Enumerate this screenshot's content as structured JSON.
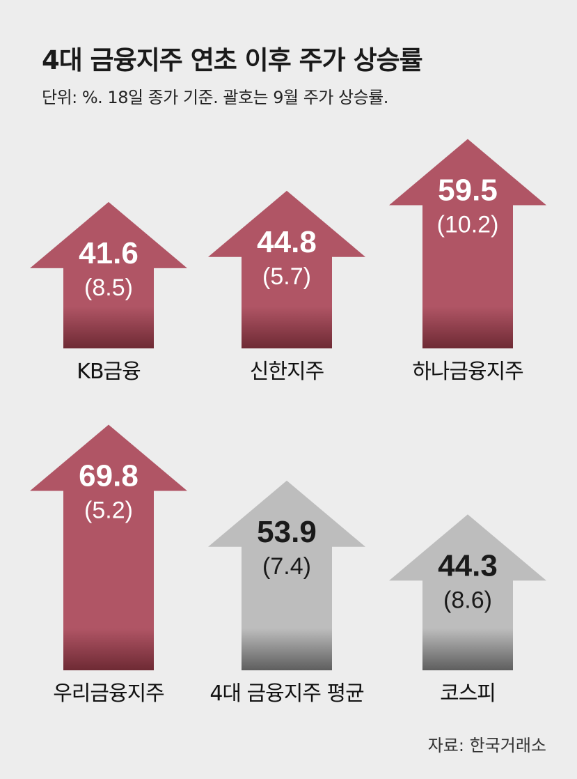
{
  "title": "4대 금융지주 연초 이후 주가 상승률",
  "subtitle": "단위: %. 18일 종가 기준. 괄호는 9월 주가 상승률.",
  "source": "자료: 한국거래소",
  "colors": {
    "financial": "#b05565",
    "financial_dark": "#6e2a34",
    "benchmark": "#bdbdbd",
    "benchmark_dark": "#5e5e5e",
    "value_light": "#ffffff",
    "value_dark": "#1a1a1a"
  },
  "chart_data": {
    "type": "bar",
    "title": "4대 금융지주 연초 이후 주가 상승률",
    "unit": "%",
    "categories": [
      "KB금융",
      "신한지주",
      "하나금융지주",
      "우리금융지주",
      "4대 금융지주 평균",
      "코스피"
    ],
    "series": [
      {
        "name": "연초 이후 주가 상승률",
        "values": [
          41.6,
          44.8,
          59.5,
          69.8,
          53.9,
          44.3
        ]
      },
      {
        "name": "9월 주가 상승률",
        "values": [
          8.5,
          5.7,
          10.2,
          5.2,
          7.4,
          8.6
        ]
      }
    ],
    "value_labels": [
      "41.6",
      "44.8",
      "59.5",
      "69.8",
      "53.9",
      "44.3"
    ],
    "sub_labels": [
      "(8.5)",
      "(5.7)",
      "(10.2)",
      "(5.2)",
      "(7.4)",
      "(8.6)"
    ],
    "group": [
      "financial",
      "financial",
      "financial",
      "financial",
      "benchmark",
      "benchmark"
    ]
  }
}
